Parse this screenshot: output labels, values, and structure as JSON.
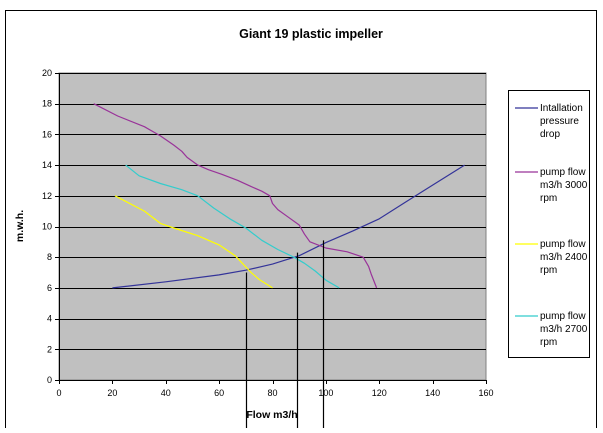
{
  "chart_data": {
    "type": "line",
    "title": "Giant 19 plastic impeller",
    "xlabel": "Flow m3/h",
    "ylabel": "m.w.h.",
    "xlim": [
      0,
      160
    ],
    "ylim": [
      0,
      20
    ],
    "xticks": [
      0,
      20,
      40,
      60,
      80,
      100,
      120,
      140,
      160
    ],
    "yticks": [
      0,
      2,
      4,
      6,
      8,
      10,
      12,
      14,
      16,
      18,
      20
    ],
    "grid": "horizontal",
    "plot_background": "#c0c0c0",
    "legend_position": "right",
    "series": [
      {
        "name_lines": [
          "Intallation",
          "pressure",
          "drop"
        ],
        "color": "#333399",
        "x": [
          20,
          40,
          60,
          70,
          80,
          90,
          100,
          110,
          120,
          130,
          140,
          152
        ],
        "y": [
          6.0,
          6.4,
          6.85,
          7.15,
          7.55,
          8.1,
          8.95,
          9.7,
          10.5,
          11.6,
          12.7,
          14.0
        ]
      },
      {
        "name_lines": [
          "pump flow",
          "m3/h 3000",
          "rpm"
        ],
        "color": "#993399",
        "x": [
          13,
          22,
          32,
          38,
          43,
          46,
          48,
          52,
          56,
          61,
          67,
          72,
          76,
          79,
          80,
          82,
          86,
          90,
          92,
          94,
          100,
          108,
          114,
          116,
          117,
          119
        ],
        "y": [
          18.0,
          17.2,
          16.5,
          15.9,
          15.3,
          14.9,
          14.5,
          14.0,
          13.7,
          13.4,
          13.0,
          12.6,
          12.3,
          12.0,
          11.5,
          11.1,
          10.6,
          10.1,
          9.5,
          9.0,
          8.6,
          8.35,
          8.0,
          7.4,
          6.9,
          6.0
        ]
      },
      {
        "name_lines": [
          "pump flow",
          "m3/h 2400",
          "rpm"
        ],
        "color": "#ffff00",
        "x": [
          21,
          32,
          38,
          43,
          52,
          60,
          66,
          72,
          75,
          80
        ],
        "y": [
          12.0,
          11.0,
          10.2,
          9.9,
          9.4,
          8.8,
          8.1,
          7.0,
          6.55,
          6.0
        ]
      },
      {
        "name_lines": [
          "pump flow",
          "m3/h 2700",
          "rpm"
        ],
        "color": "#33cccc",
        "x": [
          25,
          30,
          38,
          46,
          52,
          58,
          64,
          70,
          76,
          82,
          88,
          92,
          96,
          100,
          105
        ],
        "y": [
          14.0,
          13.3,
          12.8,
          12.4,
          12.0,
          11.2,
          10.5,
          9.9,
          9.1,
          8.5,
          8.0,
          7.6,
          7.1,
          6.5,
          6.0
        ]
      }
    ],
    "reference_lines": [
      {
        "x": 70,
        "y": 7.0
      },
      {
        "x": 89,
        "y": 8.3
      },
      {
        "x": 99,
        "y": 9.1
      }
    ]
  }
}
